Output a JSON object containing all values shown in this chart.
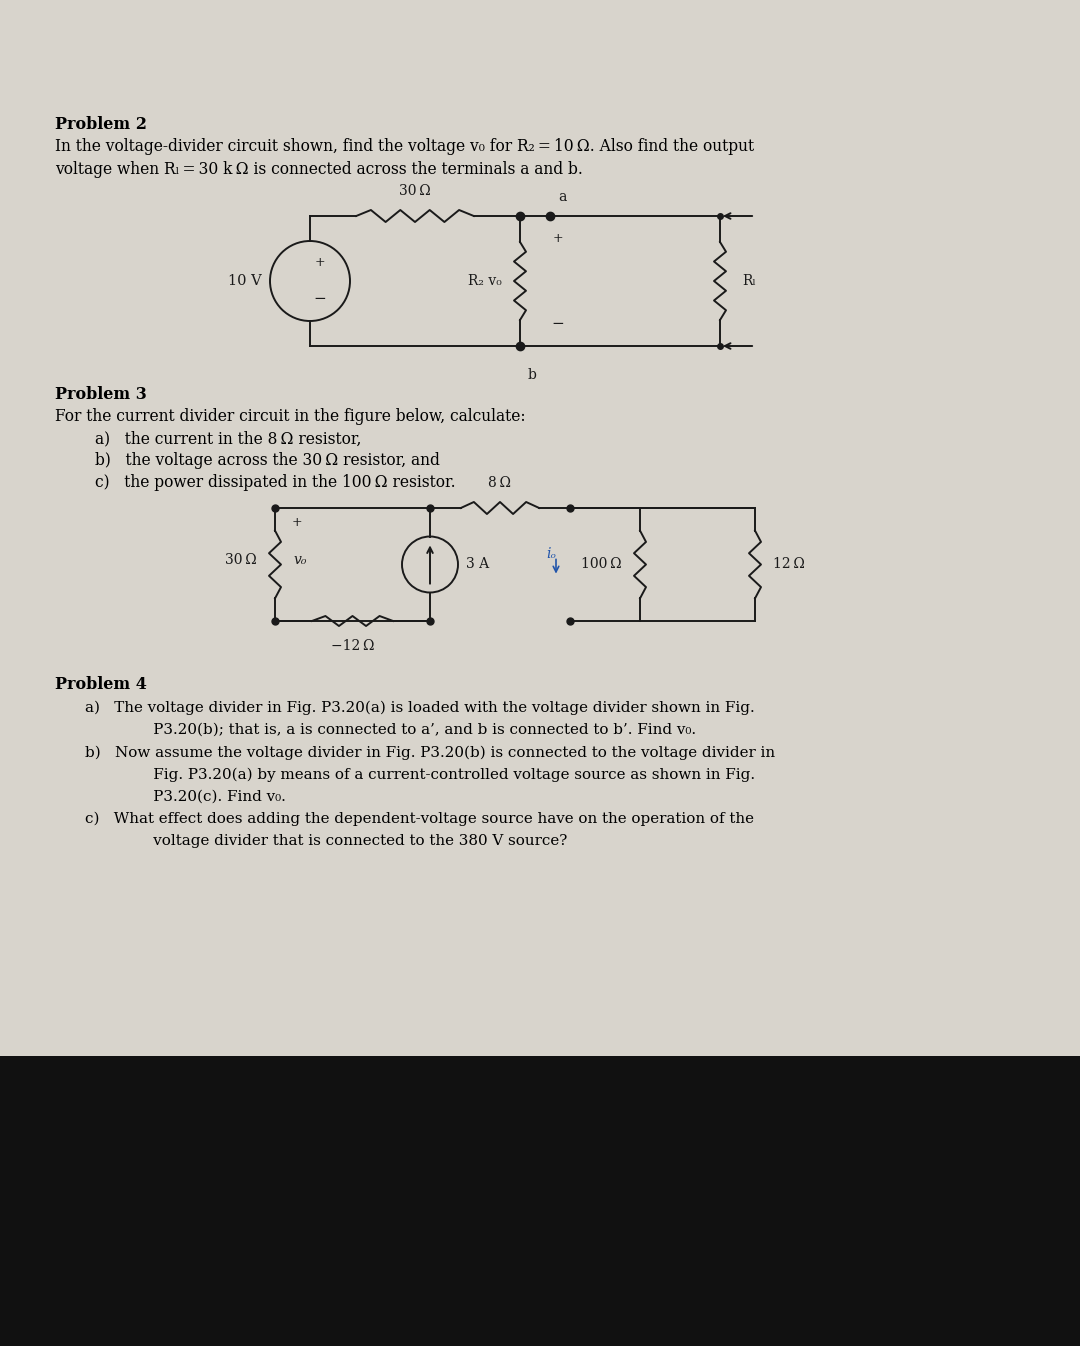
{
  "page_bg": "#d8d4cc",
  "dark_bg": "#111111",
  "circuit_color": "#1a1a1a",
  "problem2_title": "Problem 2",
  "problem2_text1": "In the voltage-divider circuit shown, find the voltage v₀ for R₂ = 10 Ω. Also find the output",
  "problem2_text2": "voltage when Rₗ = 30 k Ω is connected across the terminals a and b.",
  "problem3_title": "Problem 3",
  "problem3_text1": "For the current divider circuit in the figure below, calculate:",
  "problem3_a": "a)   the current in the 8 Ω resistor,",
  "problem3_b": "b)   the voltage across the 30 Ω resistor, and",
  "problem3_c": "c)   the power dissipated in the 100 Ω resistor.",
  "problem4_title": "Problem 4",
  "problem4_a1": "a)   The voltage divider in Fig. P3.20(a) is loaded with the voltage divider shown in Fig.",
  "problem4_a2": "       P3.20(b); that is, a is connected to a’, and b is connected to b’. Find v₀.",
  "problem4_b1": "b)   Now assume the voltage divider in Fig. P3.20(b) is connected to the voltage divider in",
  "problem4_b2": "       Fig. P3.20(a) by means of a current-controlled voltage source as shown in Fig.",
  "problem4_b3": "       P3.20(c). Find v₀.",
  "problem4_c1": "c)   What effect does adding the dependent-voltage source have on the operation of the",
  "problem4_c2": "       voltage divider that is connected to the 380 V source?"
}
